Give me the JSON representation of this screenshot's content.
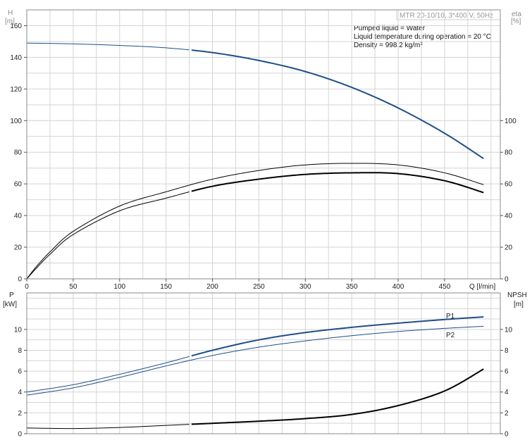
{
  "title": "MTR 20-10/10, 3*400 V, 50Hz",
  "info_lines": [
    "Pumped liquid = Water",
    "Liquid temperature during operation = 20 °C",
    "Density = 998.2 kg/m³"
  ],
  "colors": {
    "blue": "#1f4e87",
    "black": "#000000",
    "grid": "#d4d4d4",
    "frame": "#888888"
  },
  "chart_data": [
    {
      "type": "line",
      "name": "H-eta",
      "x_label": "Q [l/min]",
      "y_left_label": [
        "H",
        "[m]"
      ],
      "y_right_label": [
        "eta",
        "[%]"
      ],
      "xlim": [
        0,
        510
      ],
      "ylim_left": [
        0,
        170
      ],
      "ylim_right": [
        0,
        170
      ],
      "x_ticks": [
        0,
        50,
        100,
        150,
        200,
        250,
        300,
        350,
        400,
        450
      ],
      "y_left_ticks": [
        0,
        20,
        40,
        60,
        80,
        100,
        120,
        140,
        160
      ],
      "y_right_ticks": [
        0,
        20,
        40,
        60,
        80,
        100
      ],
      "series": [
        {
          "id": "H",
          "color": "#1f4e87",
          "x": [
            0,
            50,
            100,
            150,
            200,
            250,
            300,
            350,
            400,
            450,
            492
          ],
          "y": [
            149,
            148.5,
            147.5,
            146,
            143,
            138,
            131,
            121,
            108,
            92,
            76
          ],
          "bold_from": 177
        },
        {
          "id": "eta_thin",
          "color": "#000000",
          "x": [
            0,
            10,
            25,
            50,
            100,
            150,
            200,
            250,
            300,
            350,
            400,
            450,
            492
          ],
          "y": [
            0,
            7.5,
            17,
            30,
            46,
            55,
            63,
            68.5,
            72,
            73,
            72,
            67,
            59.5
          ],
          "bold_from": 600
        },
        {
          "id": "eta_bold",
          "color": "#000000",
          "x": [
            0,
            10,
            25,
            50,
            100,
            150,
            200,
            250,
            300,
            350,
            400,
            450,
            492
          ],
          "y": [
            0,
            6.5,
            15.5,
            28,
            43,
            51,
            58.5,
            63,
            66,
            67,
            66.5,
            62,
            54.5
          ],
          "bold_from": 177
        }
      ]
    },
    {
      "type": "line",
      "name": "P-NPSH",
      "x_label": "",
      "y_left_label": [
        "P",
        "[kW]"
      ],
      "y_right_label": [
        "NPSH",
        "[m]"
      ],
      "xlim": [
        0,
        510
      ],
      "ylim_left": [
        0,
        13.5
      ],
      "ylim_right": [
        0,
        13.5
      ],
      "y_left_ticks": [
        0,
        2,
        4,
        6,
        8,
        10
      ],
      "y_right_ticks": [
        0,
        2,
        4,
        6,
        8,
        10
      ],
      "series": [
        {
          "id": "P1",
          "label": "P1",
          "color": "#1f4e87",
          "x": [
            0,
            50,
            100,
            150,
            200,
            250,
            300,
            350,
            400,
            450,
            492
          ],
          "y": [
            4.0,
            4.7,
            5.7,
            6.8,
            8.0,
            9.0,
            9.7,
            10.2,
            10.6,
            10.95,
            11.2
          ],
          "bold_from": 177
        },
        {
          "id": "P2",
          "label": "P2",
          "color": "#1f4e87",
          "x": [
            0,
            50,
            100,
            150,
            200,
            250,
            300,
            350,
            400,
            450,
            492
          ],
          "y": [
            3.7,
            4.4,
            5.4,
            6.5,
            7.5,
            8.3,
            8.9,
            9.4,
            9.8,
            10.1,
            10.3
          ],
          "bold_from": 600
        },
        {
          "id": "NPSH",
          "color": "#000000",
          "x": [
            0,
            50,
            100,
            150,
            200,
            250,
            300,
            350,
            400,
            450,
            492
          ],
          "y": [
            0.55,
            0.5,
            0.6,
            0.8,
            1.0,
            1.2,
            1.45,
            1.85,
            2.7,
            4.1,
            6.2
          ],
          "bold_from": 177
        }
      ]
    }
  ]
}
